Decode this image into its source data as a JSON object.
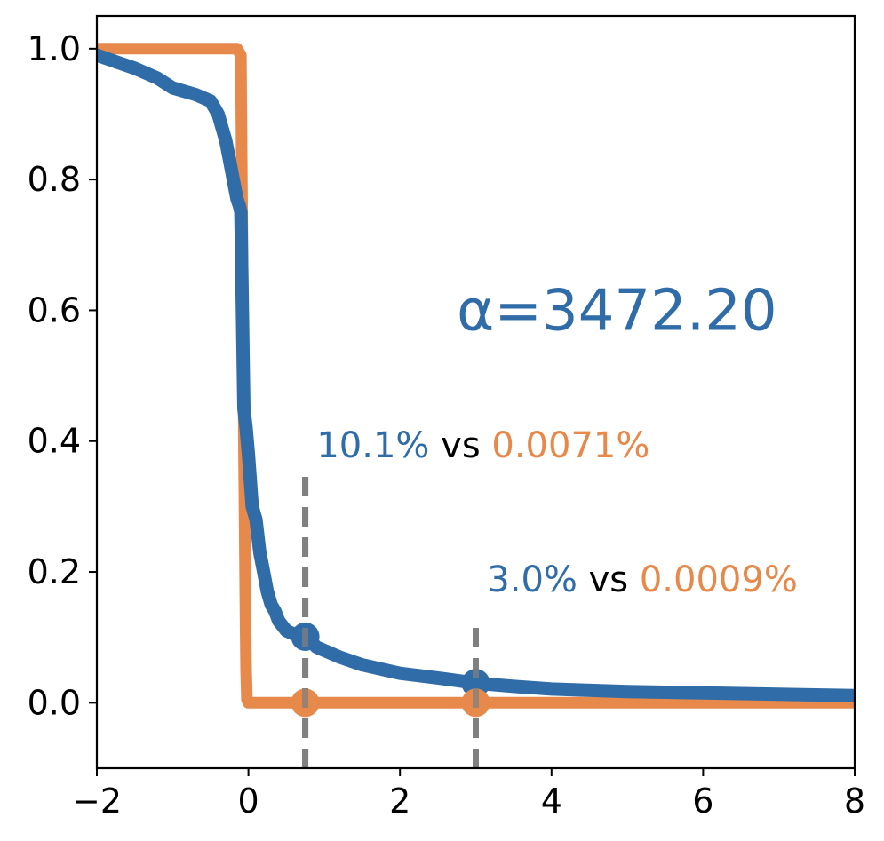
{
  "chart_data": {
    "type": "line",
    "title": "",
    "xlabel": "",
    "ylabel": "",
    "xlim": [
      -2,
      8
    ],
    "ylim": [
      -0.1,
      1.05
    ],
    "grid": false,
    "xticks": [
      -2,
      0,
      2,
      4,
      6,
      8
    ],
    "yticks": [
      0.0,
      0.2,
      0.4,
      0.6,
      0.8,
      1.0
    ],
    "xtick_labels": [
      "−2",
      "0",
      "2",
      "4",
      "6",
      "8"
    ],
    "ytick_labels": [
      "0.0",
      "0.2",
      "0.4",
      "0.6",
      "0.8",
      "1.0"
    ],
    "colors": {
      "blue": "#2f6ca8",
      "orange": "#e6894a",
      "marker_line": "#808080",
      "text": "#000000"
    },
    "series": [
      {
        "color": "#2f6ca8",
        "x": [
          -2.0,
          -1.5,
          -1.2,
          -1.0,
          -0.7,
          -0.5,
          -0.4,
          -0.35,
          -0.3,
          -0.25,
          -0.2,
          -0.15,
          -0.12,
          -0.1,
          -0.08,
          -0.06,
          -0.03,
          0.0,
          0.05,
          0.1,
          0.15,
          0.2,
          0.25,
          0.3,
          0.35,
          0.4,
          0.5,
          0.6,
          0.75,
          0.9,
          1.2,
          1.5,
          2.0,
          2.5,
          3.0,
          3.5,
          4.0,
          5.0,
          6.0,
          7.0,
          8.0
        ],
        "values": [
          0.99,
          0.97,
          0.955,
          0.94,
          0.93,
          0.92,
          0.9,
          0.88,
          0.86,
          0.83,
          0.8,
          0.77,
          0.76,
          0.75,
          0.6,
          0.45,
          0.42,
          0.38,
          0.3,
          0.28,
          0.23,
          0.2,
          0.17,
          0.15,
          0.14,
          0.125,
          0.11,
          0.105,
          0.101,
          0.085,
          0.07,
          0.058,
          0.045,
          0.038,
          0.03,
          0.025,
          0.021,
          0.017,
          0.015,
          0.013,
          0.011
        ]
      },
      {
        "color": "#e6894a",
        "x": [
          -2.0,
          -0.25,
          -0.15,
          -0.1,
          -0.08,
          -0.06,
          -0.04,
          -0.03,
          -0.02,
          0.0,
          8.0
        ],
        "values": [
          1.0,
          1.0,
          1.0,
          0.99,
          0.7,
          0.4,
          0.15,
          0.05,
          0.005,
          0.0001,
          0.0
        ]
      }
    ],
    "reference_lines": [
      {
        "x": 0.75,
        "y_top": 0.36
      },
      {
        "x": 3.0,
        "y_top": 0.13
      }
    ],
    "highlight_points": [
      {
        "x": 0.75,
        "y": 0.101,
        "series": 0
      },
      {
        "x": 0.75,
        "y": 0.0,
        "series": 1
      },
      {
        "x": 3.0,
        "y": 0.03,
        "series": 0
      },
      {
        "x": 3.0,
        "y": 0.0,
        "series": 1
      }
    ],
    "annotations": [
      {
        "x": 0.9,
        "y": 0.375,
        "parts": [
          {
            "text": "10.1%",
            "color": "#2f6ca8"
          },
          {
            "text": " vs ",
            "color": "#000000"
          },
          {
            "text": "0.0071%",
            "color": "#e6894a"
          }
        ]
      },
      {
        "x": 3.15,
        "y": 0.17,
        "parts": [
          {
            "text": "3.0%",
            "color": "#2f6ca8"
          },
          {
            "text": " vs ",
            "color": "#000000"
          },
          {
            "text": "0.0009%",
            "color": "#e6894a"
          }
        ]
      }
    ],
    "big_annotation": {
      "text": "α=3472.20",
      "color": "#2f6ca8",
      "x": 2.75,
      "y": 0.57
    }
  }
}
